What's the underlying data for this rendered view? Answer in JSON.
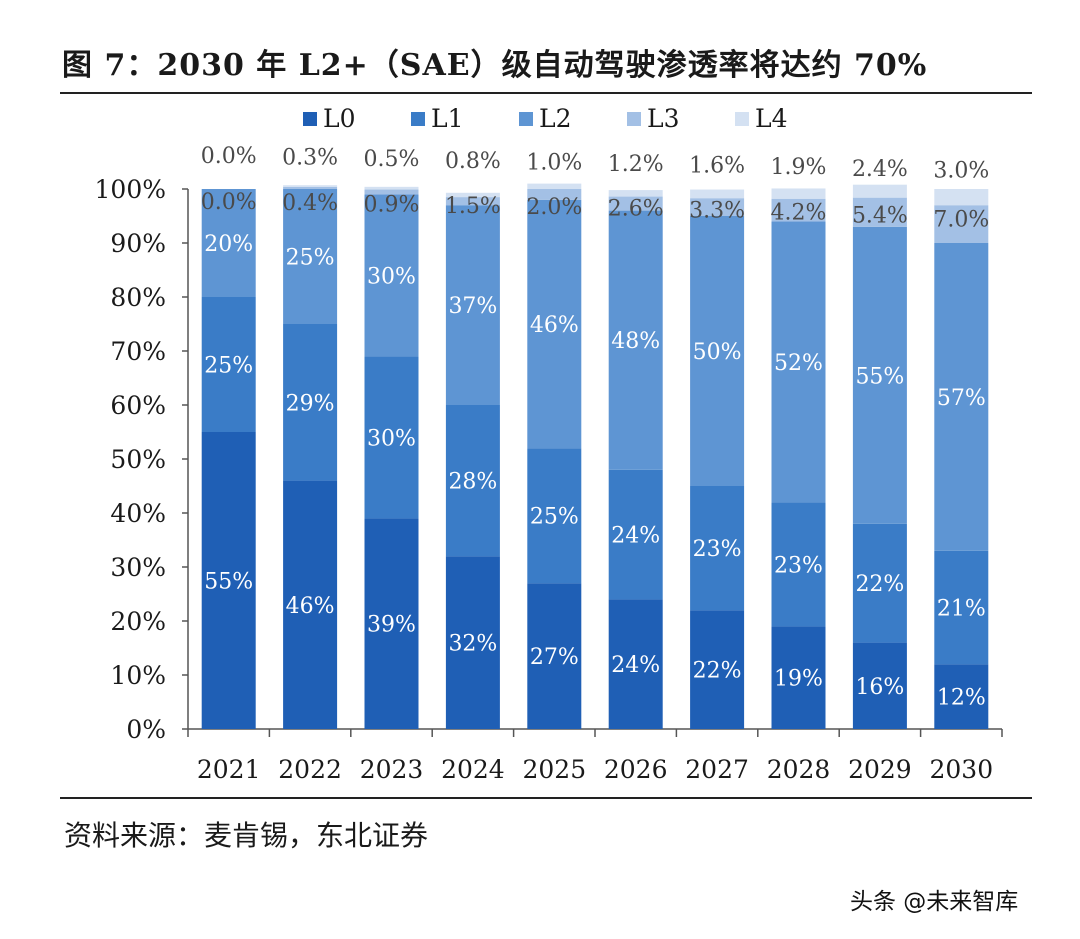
{
  "title": "图 7：2030 年 L2+（SAE）级自动驾驶渗透率将达约 70%",
  "source": "资料来源：麦肯锡，东北证券",
  "watermark": "头条 @未来智库",
  "colors": {
    "L0": "#1f5fb5",
    "L1": "#3a7cc7",
    "L2": "#5e95d3",
    "L3": "#a3c0e5",
    "L4": "#d4e1f2"
  },
  "chart_data": {
    "type": "bar",
    "stacked": true,
    "categories": [
      "2021",
      "2022",
      "2023",
      "2024",
      "2025",
      "2026",
      "2027",
      "2028",
      "2029",
      "2030"
    ],
    "series": [
      {
        "name": "L0",
        "values": [
          55,
          46,
          39,
          32,
          27,
          24,
          22,
          19,
          16,
          12
        ],
        "labels": [
          "55%",
          "46%",
          "39%",
          "32%",
          "27%",
          "24%",
          "22%",
          "19%",
          "16%",
          "12%"
        ]
      },
      {
        "name": "L1",
        "values": [
          25,
          29,
          30,
          28,
          25,
          24,
          23,
          23,
          22,
          21
        ],
        "labels": [
          "25%",
          "29%",
          "30%",
          "28%",
          "25%",
          "24%",
          "23%",
          "23%",
          "22%",
          "21%"
        ]
      },
      {
        "name": "L2",
        "values": [
          20,
          25,
          30,
          37,
          46,
          48,
          50,
          52,
          55,
          57
        ],
        "labels": [
          "20%",
          "25%",
          "30%",
          "37%",
          "46%",
          "48%",
          "50%",
          "52%",
          "55%",
          "57%"
        ]
      },
      {
        "name": "L3",
        "values": [
          0.0,
          0.4,
          0.9,
          1.5,
          2.0,
          2.6,
          3.3,
          4.2,
          5.4,
          7.0
        ],
        "labels": [
          "0.0%",
          "0.4%",
          "0.9%",
          "1.5%",
          "2.0%",
          "2.6%",
          "3.3%",
          "4.2%",
          "5.4%",
          "7.0%"
        ]
      },
      {
        "name": "L4",
        "values": [
          0.0,
          0.3,
          0.5,
          0.8,
          1.0,
          1.2,
          1.6,
          1.9,
          2.4,
          3.0
        ],
        "labels": [
          "0.0%",
          "0.3%",
          "0.5%",
          "0.8%",
          "1.0%",
          "1.2%",
          "1.6%",
          "1.9%",
          "2.4%",
          "3.0%"
        ]
      }
    ],
    "yticks": [
      "0%",
      "10%",
      "20%",
      "30%",
      "40%",
      "50%",
      "60%",
      "70%",
      "80%",
      "90%",
      "100%"
    ],
    "ylim": [
      0,
      100
    ],
    "legend": [
      "L0",
      "L1",
      "L2",
      "L3",
      "L4"
    ],
    "legend_position": "top-center",
    "grid": false,
    "xlabel": "",
    "ylabel": ""
  }
}
